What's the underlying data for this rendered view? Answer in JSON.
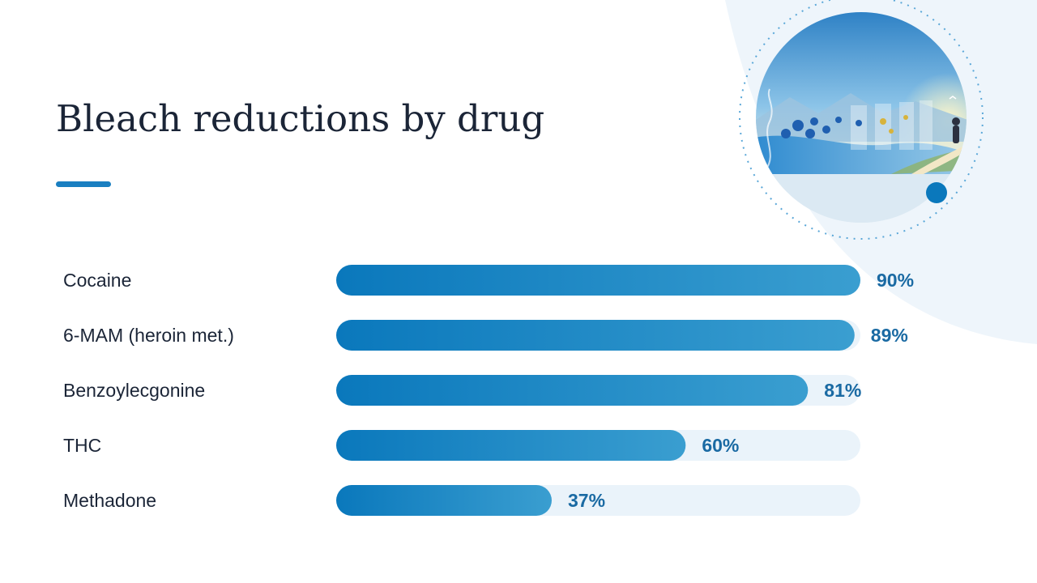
{
  "slide": {
    "title": "Bleach reductions by drug"
  },
  "colors": {
    "title": "#1b2537",
    "accent": "#1a7fc1",
    "bar_start": "#0a78bc",
    "bar_end": "#3a9ed0",
    "track": "#eaf3fa",
    "value_text": "#1a6aa3",
    "background_shape": "#eef5fb"
  },
  "icons": {
    "illustration": "molecules-water-landscape-illustration"
  },
  "chart_data": {
    "type": "bar",
    "orientation": "horizontal",
    "categories": [
      "Cocaine",
      "6-MAM (heroin met.)",
      "Benzoylecgonine",
      "THC",
      "Methadone"
    ],
    "values": [
      90,
      89,
      81,
      60,
      37
    ],
    "value_labels": [
      "90%",
      "89%",
      "81%",
      "60%",
      "37%"
    ],
    "xlim": [
      0,
      90
    ],
    "unit": "%",
    "grid": false,
    "title": "Bleach reductions by drug",
    "xlabel": "",
    "ylabel": ""
  }
}
